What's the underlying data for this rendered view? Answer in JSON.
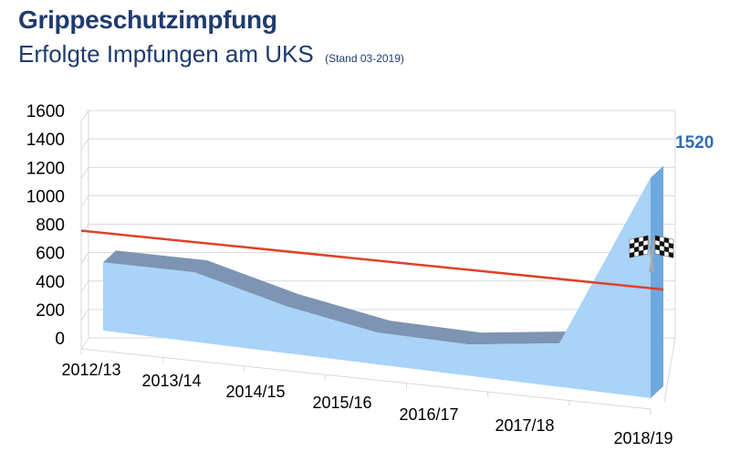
{
  "title": "Grippeschutzimpfung",
  "subtitle": "Erfolgte Impfungen am UKS",
  "stand": "(Stand 03-2019)",
  "colors": {
    "title": "#1f3b6e",
    "area_fill": "#a9d3f7",
    "area_top": "#7d94b3",
    "area_side": "#6fa8dc",
    "target_line": "#e0402a",
    "data_label": "#2e6db5",
    "grid": "#d9d9d9"
  },
  "icons": {
    "finish": "checkered-flags-icon"
  },
  "chart_data": {
    "type": "area",
    "style": "3d-area",
    "categories": [
      "2012/13",
      "2013/14",
      "2014/15",
      "2015/16",
      "2016/17",
      "2017/18",
      "2018/19"
    ],
    "series": [
      {
        "values": [
          470,
          480,
          325,
          220,
          215,
          300,
          1520
        ]
      }
    ],
    "target_line": {
      "start": 780,
      "end": 560
    },
    "ylim": [
      0,
      1600
    ],
    "yticks": [
      0,
      200,
      400,
      600,
      800,
      1000,
      1200,
      1400,
      1600
    ],
    "grid": true,
    "data_labels": [
      {
        "category": "2018/19",
        "text": "1520"
      }
    ],
    "legend": "none"
  }
}
